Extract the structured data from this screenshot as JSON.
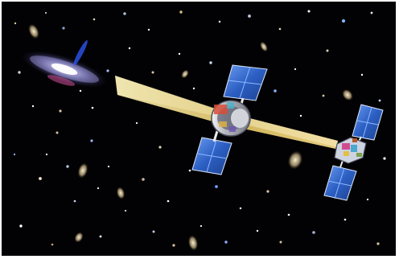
{
  "scene": {
    "subject": "satellite-formation-illustration",
    "colors": {
      "space": "#020204",
      "beam": "#f4d67a",
      "panel": "#2f64c8",
      "panel_light": "#5f93e8",
      "module": "#c8c8d0",
      "galaxy_core": "#f2eaff",
      "galaxy_disc": "#8b86c8"
    },
    "icons": [
      "galaxy-icon",
      "light-beam-icon",
      "mirror-spacecraft-icon",
      "detector-spacecraft-icon",
      "solar-panel-icon"
    ]
  }
}
